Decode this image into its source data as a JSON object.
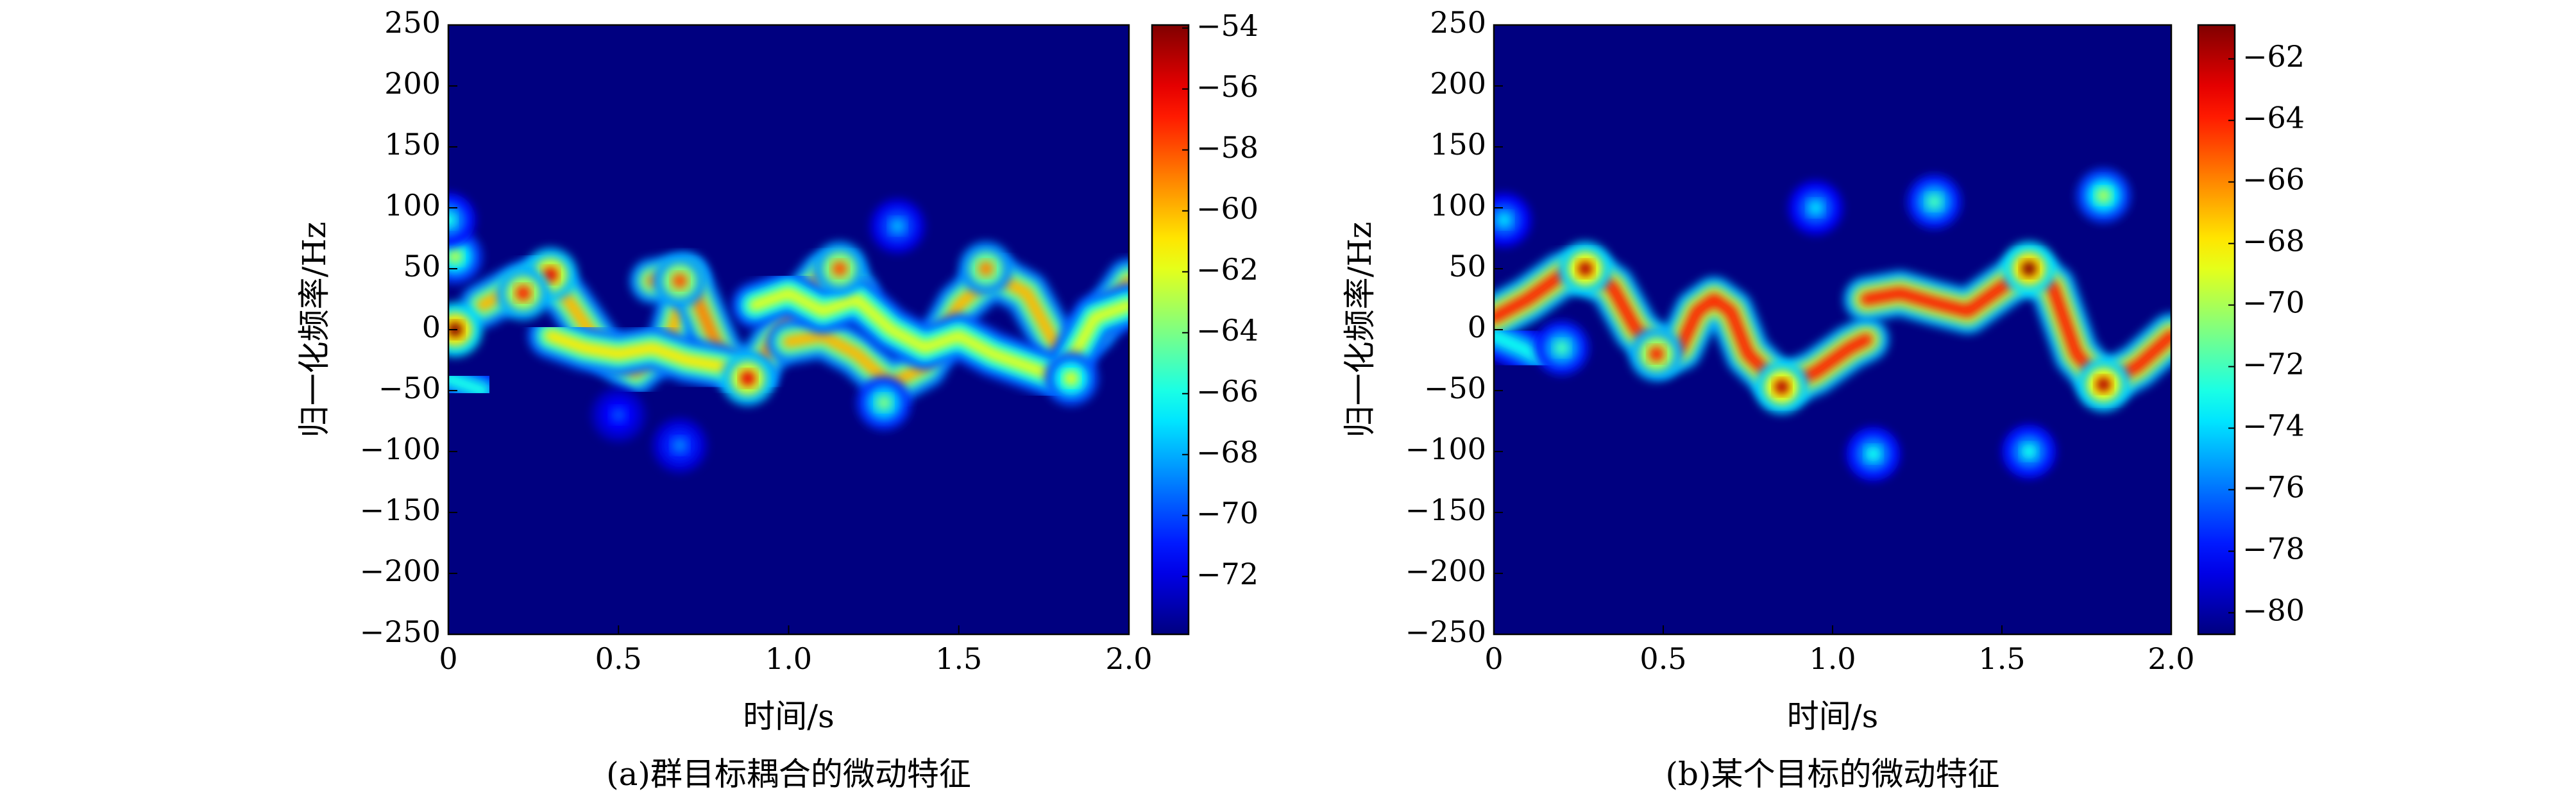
{
  "chart_data": [
    {
      "type": "spectrogram",
      "title": "(a)群目标耦合的微动特征",
      "xlabel": "时间/s",
      "ylabel": "归一化频率/Hz",
      "xlim": [
        0,
        2
      ],
      "xticks": [
        0,
        0.5,
        {
          "value": 1,
          "label": "1.0"
        },
        1.5,
        {
          "value": 2,
          "label": "2.0"
        }
      ],
      "ylim": [
        -250,
        250
      ],
      "yticks": [
        {
          "value": -250,
          "label": "−250"
        },
        {
          "value": -200,
          "label": "−200"
        },
        {
          "value": -150,
          "label": "−150"
        },
        {
          "value": -100,
          "label": "−100"
        },
        {
          "value": -50,
          "label": "−50"
        },
        0,
        50,
        100,
        150,
        200,
        250
      ],
      "clim": [
        -73.9,
        -53.9
      ],
      "cticks": [
        {
          "value": -72,
          "label": "−72"
        },
        {
          "value": -70,
          "label": "−70"
        },
        {
          "value": -68,
          "label": "−68"
        },
        {
          "value": -66,
          "label": "−66"
        },
        {
          "value": -64,
          "label": "−64"
        },
        {
          "value": -62,
          "label": "−62"
        },
        {
          "value": -60,
          "label": "−60"
        },
        {
          "value": -58,
          "label": "−58"
        },
        {
          "value": -56,
          "label": "−56"
        },
        {
          "value": -54,
          "label": "−54"
        }
      ],
      "colormap": "jet",
      "background_level": -73.9,
      "ridges": [
        {
          "x": [
            0.1,
            0.2,
            0.28,
            0.35,
            0.45,
            0.55,
            0.65,
            0.7
          ],
          "y": [
            20,
            35,
            45,
            25,
            -15,
            -35,
            -10,
            40
          ],
          "level": -60
        },
        {
          "x": [
            0.6,
            0.7,
            0.8,
            0.85,
            0.9,
            1.0,
            1.1,
            1.15,
            1.2
          ],
          "y": [
            40,
            45,
            -20,
            -35,
            -35,
            10,
            45,
            50,
            30
          ],
          "level": -59
        },
        {
          "x": [
            0.3,
            0.4,
            0.5,
            0.6,
            0.7,
            0.8,
            0.9
          ],
          "y": [
            -5,
            -15,
            -20,
            -15,
            -25,
            -30,
            -40
          ],
          "level": -61
        },
        {
          "x": [
            1.0,
            1.1,
            1.2,
            1.3,
            1.4,
            1.5,
            1.6,
            1.7,
            1.8,
            1.9,
            2.0
          ],
          "y": [
            -10,
            -5,
            -20,
            -45,
            -30,
            20,
            45,
            30,
            -20,
            0,
            40
          ],
          "level": -60
        },
        {
          "x": [
            0.9,
            1.0,
            1.1,
            1.2,
            1.3,
            1.4,
            1.5,
            1.6,
            1.7,
            1.8,
            1.9,
            2.0
          ],
          "y": [
            20,
            30,
            15,
            25,
            0,
            -15,
            -5,
            -20,
            -30,
            -40,
            10,
            20
          ],
          "level": -62
        },
        {
          "x": [
            0,
            0.05,
            0.1
          ],
          "y": [
            -40,
            -45,
            -50
          ],
          "level": -66
        }
      ],
      "spots": {
        "x": [
          0.02,
          0.02,
          0.0,
          0.3,
          0.22,
          0.88,
          0.68,
          1.15,
          1.58,
          0.5,
          1.32,
          0.68,
          1.28,
          1.83
        ],
        "y": [
          0,
          60,
          90,
          45,
          30,
          -40,
          40,
          50,
          50,
          -70,
          85,
          -95,
          -60,
          -40
        ],
        "level": [
          -54,
          -63,
          -66,
          -56,
          -57,
          -56,
          -58,
          -58,
          -59,
          -70,
          -68,
          -69,
          -64,
          -62
        ]
      }
    },
    {
      "type": "spectrogram",
      "title": "(b)某个目标的微动特征",
      "xlabel": "时间/s",
      "ylabel": "归一化频率/Hz",
      "xlim": [
        0,
        2
      ],
      "xticks": [
        0,
        0.5,
        {
          "value": 1,
          "label": "1.0"
        },
        1.5,
        {
          "value": 2,
          "label": "2.0"
        }
      ],
      "ylim": [
        -250,
        250
      ],
      "yticks": [
        {
          "value": -250,
          "label": "−250"
        },
        {
          "value": -200,
          "label": "−200"
        },
        {
          "value": -150,
          "label": "−150"
        },
        {
          "value": -100,
          "label": "−100"
        },
        {
          "value": -50,
          "label": "−50"
        },
        0,
        50,
        100,
        150,
        200,
        250
      ],
      "clim": [
        -80.7,
        -60.9
      ],
      "cticks": [
        {
          "value": -80,
          "label": "−80"
        },
        {
          "value": -78,
          "label": "−78"
        },
        {
          "value": -76,
          "label": "−76"
        },
        {
          "value": -74,
          "label": "−74"
        },
        {
          "value": -72,
          "label": "−72"
        },
        {
          "value": -70,
          "label": "−70"
        },
        {
          "value": -68,
          "label": "−68"
        },
        {
          "value": -66,
          "label": "−66"
        },
        {
          "value": -64,
          "label": "−64"
        },
        {
          "value": -62,
          "label": "−62"
        }
      ],
      "colormap": "jet",
      "background_level": -80.7,
      "ridges": [
        {
          "x": [
            0,
            0.1,
            0.2,
            0.27,
            0.35,
            0.42,
            0.5,
            0.55,
            0.6,
            0.65,
            0.7,
            0.75,
            0.85,
            0.95,
            1.05,
            1.1
          ],
          "y": [
            10,
            25,
            45,
            50,
            35,
            0,
            -20,
            -15,
            15,
            25,
            15,
            -20,
            -47,
            -35,
            -15,
            -8
          ],
          "level": -64
        },
        {
          "x": [
            1.1,
            1.2,
            1.3,
            1.4,
            1.5,
            1.58,
            1.65,
            1.72,
            1.8,
            1.9,
            2.0
          ],
          "y": [
            25,
            30,
            22,
            15,
            35,
            50,
            35,
            -20,
            -45,
            -30,
            -5
          ],
          "level": -64
        },
        {
          "x": [
            0,
            0.08,
            0.15
          ],
          "y": [
            -5,
            -15,
            -25
          ],
          "level": -73
        }
      ],
      "spots": {
        "x": [
          0.27,
          0.85,
          1.58,
          1.8,
          0.48,
          0.95,
          1.3,
          1.58,
          1.12,
          0.03,
          0.2,
          1.8
        ],
        "y": [
          50,
          -47,
          50,
          -45,
          -20,
          100,
          105,
          -100,
          -102,
          90,
          -15,
          110
        ],
        "level": [
          -62,
          -62,
          -61,
          -62,
          -64,
          -74,
          -72,
          -73,
          -73,
          -74,
          -72,
          -70
        ]
      }
    }
  ]
}
